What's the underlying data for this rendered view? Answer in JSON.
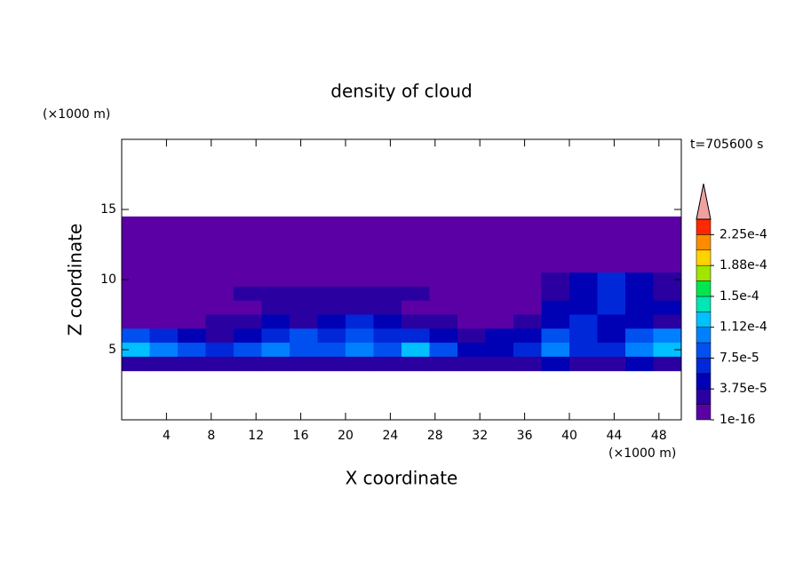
{
  "chart_data": {
    "type": "contour",
    "title": "density of cloud",
    "x_label": "X coordinate",
    "y_label": "Z coordinate",
    "x_unit": "(×1000 m)",
    "y_unit": "(×1000 m)",
    "annotation": "t=705600 s",
    "xlim": [
      0,
      50
    ],
    "ylim": [
      0,
      20
    ],
    "xticks": [
      4,
      8,
      12,
      16,
      20,
      24,
      28,
      32,
      36,
      40,
      44,
      48
    ],
    "yticks": [
      5,
      10,
      15
    ],
    "colorbar": {
      "levels": [
        1e-16,
        1.875e-05,
        3.75e-05,
        5.625e-05,
        7.5e-05,
        9.375e-05,
        0.0001125,
        0.00013125,
        0.00015,
        0.00016875,
        0.0001875,
        0.00020625,
        0.000225,
        0.00024375
      ],
      "colors": [
        "#5a00a5",
        "#2a00a0",
        "#0000b4",
        "#0028d8",
        "#0050f0",
        "#0080ff",
        "#00c0ff",
        "#00e6b4",
        "#00e650",
        "#a0e600",
        "#ffd200",
        "#ff8c00",
        "#ff2800"
      ],
      "extend_color": "#f0a0a0",
      "ticks": [
        {
          "value": 1e-16,
          "label": "1e-16"
        },
        {
          "value": 3.75e-05,
          "label": "3.75e-5"
        },
        {
          "value": 7.5e-05,
          "label": "7.5e-5"
        },
        {
          "value": 0.0001125,
          "label": "1.12e-4"
        },
        {
          "value": 0.00015,
          "label": "1.5e-4"
        },
        {
          "value": 0.0001875,
          "label": "1.88e-4"
        },
        {
          "value": 0.000225,
          "label": "2.25e-4"
        }
      ]
    },
    "field": {
      "x": [
        1.25,
        3.75,
        6.25,
        8.75,
        11.25,
        13.75,
        16.25,
        18.75,
        21.25,
        23.75,
        26.25,
        28.75,
        31.25,
        33.75,
        36.25,
        38.75,
        41.25,
        43.75,
        46.25,
        48.75
      ],
      "y": [
        14,
        13,
        12,
        11,
        10,
        9,
        8,
        7,
        6,
        5,
        4
      ],
      "values": [
        [
          5e-06,
          5e-06,
          5e-06,
          5e-06,
          5e-06,
          5e-06,
          5e-06,
          5e-06,
          5e-06,
          5e-06,
          5e-06,
          5e-06,
          5e-06,
          5e-06,
          5e-06,
          5e-06,
          5e-06,
          5e-06,
          5e-06,
          5e-06
        ],
        [
          5e-06,
          5e-06,
          5e-06,
          5e-06,
          5e-06,
          5e-06,
          5e-06,
          5e-06,
          5e-06,
          5e-06,
          5e-06,
          5e-06,
          5e-06,
          5e-06,
          5e-06,
          5e-06,
          5e-06,
          5e-06,
          5e-06,
          5e-06
        ],
        [
          5e-06,
          5e-06,
          5e-06,
          5e-06,
          5e-06,
          5e-06,
          5e-06,
          5e-06,
          5e-06,
          5e-06,
          5e-06,
          5e-06,
          5e-06,
          5e-06,
          5e-06,
          5e-06,
          5e-06,
          5e-06,
          5e-06,
          5e-06
        ],
        [
          5e-06,
          5e-06,
          5e-06,
          5e-06,
          5e-06,
          5e-06,
          5e-06,
          5e-06,
          5e-06,
          5e-06,
          5e-06,
          5e-06,
          5e-06,
          5e-06,
          5e-06,
          5e-06,
          5e-06,
          5e-06,
          5e-06,
          5e-06
        ],
        [
          5e-06,
          5e-06,
          5e-06,
          5e-06,
          5e-06,
          5e-06,
          5e-06,
          5e-06,
          5e-06,
          5e-06,
          5e-06,
          5e-06,
          5e-06,
          5e-06,
          5e-06,
          2e-05,
          4e-05,
          6e-05,
          4e-05,
          2e-05
        ],
        [
          5e-06,
          5e-06,
          5e-06,
          5e-06,
          2e-05,
          2.5e-05,
          2.5e-05,
          2.5e-05,
          2.5e-05,
          2.5e-05,
          2.5e-05,
          5e-06,
          5e-06,
          5e-06,
          5e-06,
          3e-05,
          5e-05,
          6e-05,
          5e-05,
          3e-05
        ],
        [
          5e-06,
          5e-06,
          5e-06,
          5e-06,
          5e-06,
          2e-05,
          2e-05,
          2e-05,
          2e-05,
          2e-05,
          5e-06,
          5e-06,
          5e-06,
          5e-06,
          5e-06,
          4e-05,
          5e-05,
          6e-05,
          5e-05,
          4e-05
        ],
        [
          5e-06,
          5e-06,
          5e-06,
          2e-05,
          3e-05,
          4e-05,
          3e-05,
          4e-05,
          6e-05,
          5e-05,
          3e-05,
          2e-05,
          5e-06,
          5e-06,
          2e-05,
          5e-05,
          6e-05,
          5e-05,
          4e-05,
          3e-05
        ],
        [
          8e-05,
          6e-05,
          4e-05,
          3e-05,
          5e-05,
          6e-05,
          8e-05,
          7e-05,
          8e-05,
          6e-05,
          6e-05,
          5e-05,
          3e-05,
          4e-05,
          5e-05,
          8e-05,
          6e-05,
          5e-05,
          8e-05,
          0.0001
        ],
        [
          0.00012,
          0.0001,
          8e-05,
          6e-05,
          8e-05,
          0.0001,
          9e-05,
          8e-05,
          0.0001,
          9e-05,
          0.00012,
          8e-05,
          4e-05,
          5e-05,
          6e-05,
          0.0001,
          7e-05,
          6e-05,
          0.00011,
          0.00013
        ],
        [
          3e-05,
          2.5e-05,
          2.5e-05,
          2.5e-05,
          2.5e-05,
          2.5e-05,
          2.5e-05,
          2.5e-05,
          2.5e-05,
          2.5e-05,
          2.5e-05,
          2.5e-05,
          2e-05,
          2.5e-05,
          2.5e-05,
          4e-05,
          2.5e-05,
          2.5e-05,
          4e-05,
          2.5e-05
        ]
      ]
    }
  }
}
